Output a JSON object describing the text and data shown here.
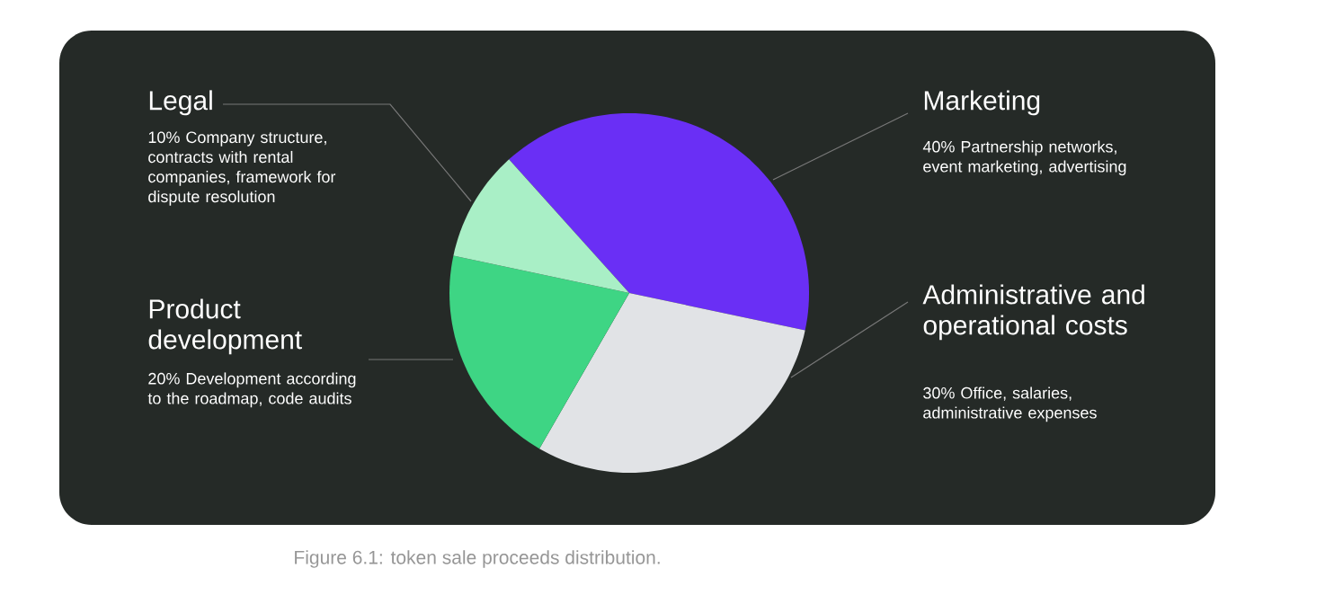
{
  "chart_data": {
    "type": "pie",
    "categories": [
      "Marketing",
      "Administrative and operational costs",
      "Product development",
      "Legal"
    ],
    "values": [
      40,
      30,
      20,
      10
    ],
    "colors": [
      "#6a2ff5",
      "#e1e3e6",
      "#3ed584",
      "#a9efc6"
    ],
    "annotations": [
      "40% Partnership networks, event marketing, advertising",
      "30% Office, salaries, administrative expenses",
      "20% Development according to the roadmap, code audits",
      "10% Company structure, contracts with rental companies, framework for dispute resolution",
      "Figure 6.1: token sale proceeds distribution."
    ]
  }
}
